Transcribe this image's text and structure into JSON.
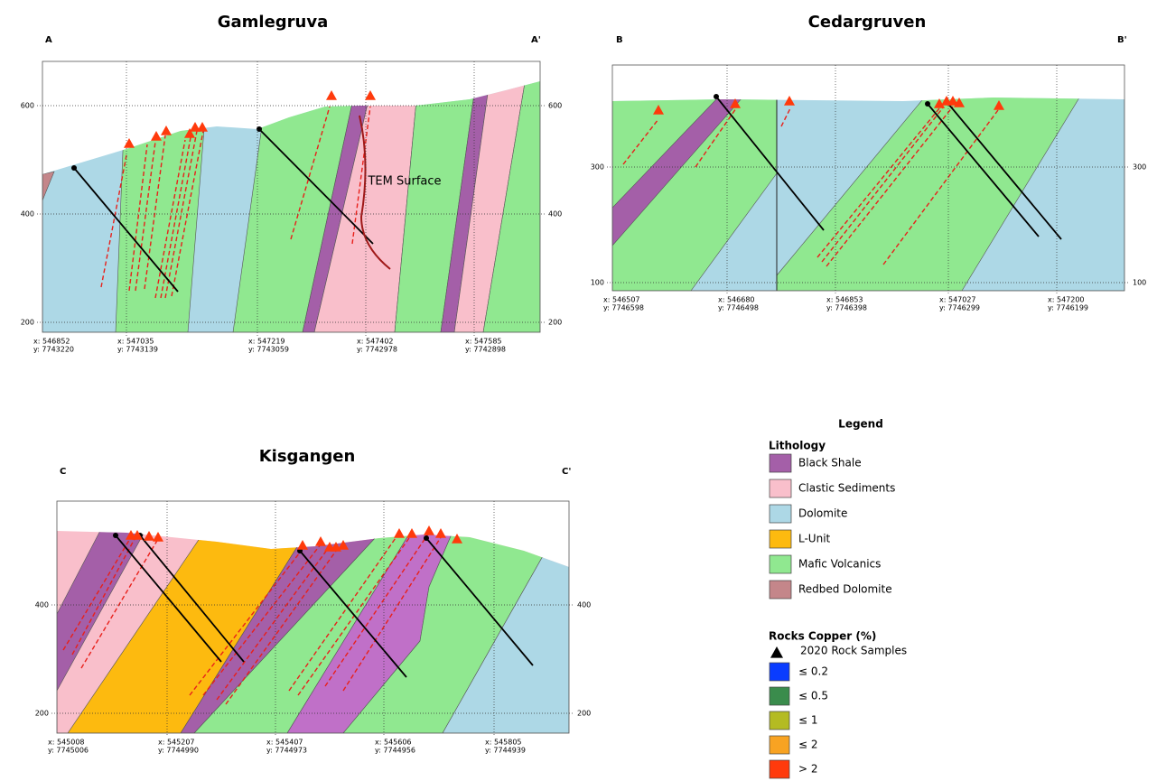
{
  "sections": [
    {
      "title": "Gamlegruva",
      "start_label": "A",
      "end_label": "A'",
      "elevation_ticks": [
        600,
        400,
        200
      ],
      "coordinates": [
        {
          "x": "x: 546852",
          "y": "y: 7743220"
        },
        {
          "x": "x: 547035",
          "y": "y: 7743139"
        },
        {
          "x": "x: 547219",
          "y": "y: 7743059"
        },
        {
          "x": "x: 547402",
          "y": "y: 7742978"
        },
        {
          "x": "x: 547585",
          "y": "y: 7742898"
        }
      ],
      "annotation": "TEM Surface"
    },
    {
      "title": "Cedargruven",
      "start_label": "B",
      "end_label": "B'",
      "elevation_ticks": [
        300,
        100
      ],
      "coordinates": [
        {
          "x": "x: 546507",
          "y": "y: 7746598"
        },
        {
          "x": "x: 546680",
          "y": "y: 7746498"
        },
        {
          "x": "x: 546853",
          "y": "y: 7746398"
        },
        {
          "x": "x: 547027",
          "y": "y: 7746299"
        },
        {
          "x": "x: 547200",
          "y": "y: 7746199"
        }
      ]
    },
    {
      "title": "Kisgangen",
      "start_label": "C",
      "end_label": "C'",
      "elevation_ticks": [
        400,
        200
      ],
      "coordinates": [
        {
          "x": "x: 545008",
          "y": "y: 7745006"
        },
        {
          "x": "x: 545207",
          "y": "y: 7744990"
        },
        {
          "x": "x: 545407",
          "y": "y: 7744973"
        },
        {
          "x": "x: 545606",
          "y": "y: 7744956"
        },
        {
          "x": "x: 545805",
          "y": "y: 7744939"
        }
      ]
    }
  ],
  "legend": {
    "title": "Legend",
    "lithology_title": "Lithology",
    "lithology": [
      {
        "name": "Black Shale",
        "color": "#a45fa8"
      },
      {
        "name": "Clastic Sediments",
        "color": "#f9bfcb"
      },
      {
        "name": "Dolomite",
        "color": "#add8e6"
      },
      {
        "name": "L-Unit",
        "color": "#fdba0f"
      },
      {
        "name": "Mafic Volcanics",
        "color": "#90e890"
      },
      {
        "name": "Redbed Dolomite",
        "color": "#c4868a"
      }
    ],
    "copper_title": "Rocks Copper (%)",
    "samples_label": "2020 Rock Samples",
    "copper": [
      {
        "name": "≤ 0.2",
        "color": "#0a3cff"
      },
      {
        "name": "≤ 0.5",
        "color": "#3a8c4c"
      },
      {
        "name": "≤ 1",
        "color": "#b4bb22"
      },
      {
        "name": "≤ 2",
        "color": "#f8a322"
      },
      {
        "name": "> 2",
        "color": "#ff3a0c"
      }
    ]
  }
}
